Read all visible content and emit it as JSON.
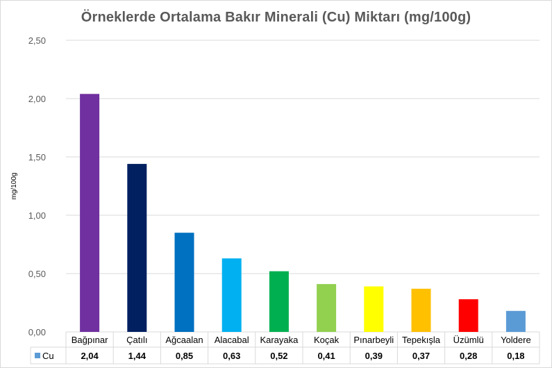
{
  "chart_data": {
    "type": "bar",
    "title": "Örneklerde Ortalama Bakır Minerali (Cu) Miktarı (mg/100g)",
    "xlabel": "",
    "ylabel": "mg/100g",
    "ylim": [
      0,
      2.5
    ],
    "yticks": [
      "0,00",
      "0,50",
      "1,00",
      "1,50",
      "2,00",
      "2,50"
    ],
    "grid": true,
    "legend": "data-table",
    "categories": [
      "Bağpınar",
      "Çatılı",
      "Ağcaalan",
      "Alacabal",
      "Karayaka",
      "Koçak",
      "Pınarbeyli",
      "Tepekışla",
      "Üzümlü",
      "Yoldere"
    ],
    "series": [
      {
        "name": "Cu",
        "values": [
          2.04,
          1.44,
          0.85,
          0.63,
          0.52,
          0.41,
          0.39,
          0.37,
          0.28,
          0.18
        ],
        "value_labels": [
          "2,04",
          "1,44",
          "0,85",
          "0,63",
          "0,52",
          "0,41",
          "0,39",
          "0,37",
          "0,28",
          "0,18"
        ],
        "legend_color": "#5b9bd5"
      }
    ],
    "bar_colors": [
      "#7030a0",
      "#002060",
      "#0070c0",
      "#00b0f0",
      "#00b050",
      "#92d050",
      "#ffff00",
      "#ffc000",
      "#ff0000",
      "#5b9bd5"
    ]
  }
}
